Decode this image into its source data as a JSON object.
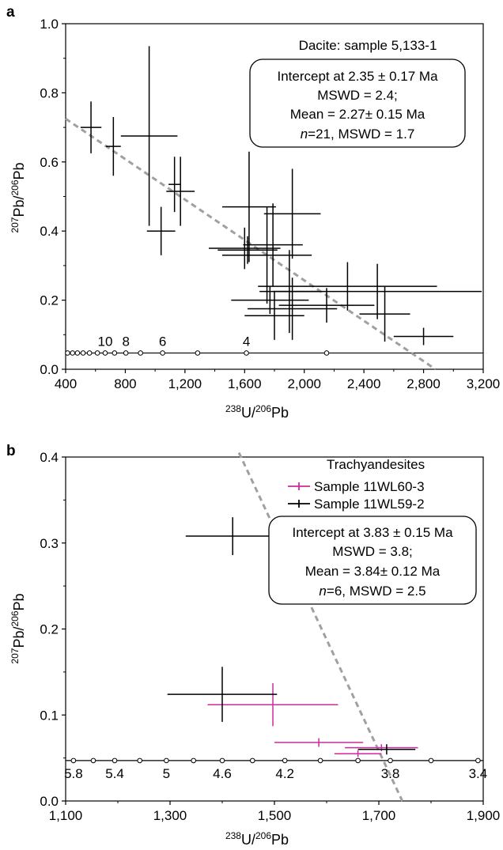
{
  "chart_data": [
    {
      "panel": "a",
      "type": "scatter",
      "xlabel_sup1": "238",
      "xlabel_base1": "U/",
      "xlabel_sup2": "206",
      "xlabel_base2": "Pb",
      "ylabel_sup1": "207",
      "ylabel_base1": "Pb/",
      "ylabel_sup2": "206",
      "ylabel_base2": "Pb",
      "xlim": [
        400,
        3200
      ],
      "ylim": [
        0.0,
        1.0
      ],
      "xticks": [
        400,
        800,
        1200,
        1600,
        2000,
        2400,
        2800,
        3200
      ],
      "xtick_labels": [
        "400",
        "800",
        "1,200",
        "1,600",
        "2,000",
        "2,400",
        "2,800",
        "3,200"
      ],
      "yticks": [
        0.0,
        0.2,
        0.4,
        0.6,
        0.8,
        1.0
      ],
      "ytick_labels": [
        "0.0",
        "0.2",
        "0.4",
        "0.6",
        "0.8",
        "1.0"
      ],
      "sample_title": "Dacite: sample 5,133-1",
      "annotation_lines": [
        "Intercept at 2.35 ± 0.17 Ma",
        "MSWD = 2.4;",
        "Mean = 2.27± 0.15 Ma",
        "n=21, MSWD = 1.7"
      ],
      "concordia": {
        "y": 0.047,
        "x_range": [
          400,
          3200
        ],
        "ticks_x": [
          413,
          446,
          479,
          517,
          560,
          613,
          665,
          728,
          804,
          902,
          1050,
          1285,
          1612,
          2150
        ],
        "labels": [
          {
            "text": "10",
            "x": 665
          },
          {
            "text": "8",
            "x": 804
          },
          {
            "text": "6",
            "x": 1050
          },
          {
            "text": "4",
            "x": 1612
          }
        ]
      },
      "regression_line": {
        "x1": 400,
        "y1": 0.725,
        "x2": 2880,
        "y2": 0.0
      },
      "series": [
        {
          "color": "#000000",
          "points": [
            {
              "x": 570,
              "y": 0.7,
              "xerr": 70,
              "yerr": 0.075
            },
            {
              "x": 720,
              "y": 0.645,
              "xerr": 50,
              "yerr": 0.085
            },
            {
              "x": 960,
              "y": 0.675,
              "xerr": 190,
              "yerr": 0.26
            },
            {
              "x": 1040,
              "y": 0.4,
              "xerr": 95,
              "yerr": 0.07
            },
            {
              "x": 1130,
              "y": 0.535,
              "xerr": 40,
              "yerr": 0.08
            },
            {
              "x": 1170,
              "y": 0.515,
              "xerr": 95,
              "yerr": 0.1
            },
            {
              "x": 1600,
              "y": 0.35,
              "xerr": 240,
              "yerr": 0.06
            },
            {
              "x": 1630,
              "y": 0.47,
              "xerr": 180,
              "yerr": 0.16
            },
            {
              "x": 1620,
              "y": 0.345,
              "xerr": 200,
              "yerr": 0.04
            },
            {
              "x": 1750,
              "y": 0.33,
              "xerr": 300,
              "yerr": 0.14
            },
            {
              "x": 1770,
              "y": 0.2,
              "xerr": 260,
              "yerr": 0.04
            },
            {
              "x": 1790,
              "y": 0.36,
              "xerr": 200,
              "yerr": 0.12
            },
            {
              "x": 1800,
              "y": 0.155,
              "xerr": 200,
              "yerr": 0.07
            },
            {
              "x": 1920,
              "y": 0.45,
              "xerr": 190,
              "yerr": 0.13
            },
            {
              "x": 1900,
              "y": 0.225,
              "xerr": 200,
              "yerr": 0.12
            },
            {
              "x": 1920,
              "y": 0.175,
              "xerr": 300,
              "yerr": 0.09
            },
            {
              "x": 2150,
              "y": 0.185,
              "xerr": 320,
              "yerr": 0.05
            },
            {
              "x": 2290,
              "y": 0.24,
              "xerr": 600,
              "yerr": 0.07
            },
            {
              "x": 2490,
              "y": 0.225,
              "xerr": 700,
              "yerr": 0.08
            },
            {
              "x": 2540,
              "y": 0.16,
              "xerr": 170,
              "yerr": 0.08
            },
            {
              "x": 2800,
              "y": 0.095,
              "xerr": 200,
              "yerr": 0.025
            }
          ]
        }
      ]
    },
    {
      "panel": "b",
      "type": "scatter",
      "xlabel_sup1": "238",
      "xlabel_base1": "U/",
      "xlabel_sup2": "206",
      "xlabel_base2": "Pb",
      "ylabel_sup1": "207",
      "ylabel_base1": "Pb/",
      "ylabel_sup2": "206",
      "ylabel_base2": "Pb",
      "xlim": [
        1100,
        1900
      ],
      "ylim": [
        0.0,
        0.4
      ],
      "xticks": [
        1100,
        1300,
        1500,
        1700,
        1900
      ],
      "xtick_labels": [
        "1,100",
        "1,300",
        "1,500",
        "1,700",
        "1,900"
      ],
      "yticks": [
        0.0,
        0.1,
        0.2,
        0.3,
        0.4
      ],
      "ytick_labels": [
        "0.0",
        "0.1",
        "0.2",
        "0.3",
        "0.4"
      ],
      "legend_title": "Trachyandesites",
      "legend_position": "top-right",
      "annotation_lines": [
        "Intercept at 3.83 ± 0.15 Ma",
        "MSWD = 3.8;",
        "Mean = 3.84± 0.12 Ma",
        "n=6, MSWD = 2.5"
      ],
      "concordia": {
        "y": 0.047,
        "x_range": [
          1100,
          1900
        ],
        "ticks_x": [
          1115,
          1153,
          1194,
          1242,
          1293,
          1345,
          1400,
          1458,
          1520,
          1588,
          1660,
          1722,
          1800,
          1890
        ],
        "labels": [
          {
            "text": "5.8",
            "x": 1115
          },
          {
            "text": "5.4",
            "x": 1194
          },
          {
            "text": "5",
            "x": 1293
          },
          {
            "text": "4.6",
            "x": 1400
          },
          {
            "text": "4.2",
            "x": 1520
          },
          {
            "text": "3.8",
            "x": 1722
          },
          {
            "text": "3.4",
            "x": 1890
          }
        ]
      },
      "regression_line": {
        "x1": 1432,
        "y1": 0.405,
        "x2": 1745,
        "y2": 0.0
      },
      "series": [
        {
          "name": "Sample 11WL60-3",
          "color": "#cc2a9e",
          "points": [
            {
              "x": 1497,
              "y": 0.112,
              "xerr": 125,
              "yerr": 0.025
            },
            {
              "x": 1585,
              "y": 0.068,
              "xerr": 85,
              "yerr": 0.005
            },
            {
              "x": 1705,
              "y": 0.062,
              "xerr": 70,
              "yerr": 0.004
            },
            {
              "x": 1660,
              "y": 0.055,
              "xerr": 45,
              "yerr": 0.004
            }
          ]
        },
        {
          "name": "Sample 11WL59-2",
          "color": "#000000",
          "points": [
            {
              "x": 1420,
              "y": 0.308,
              "xerr": 90,
              "yerr": 0.022
            },
            {
              "x": 1400,
              "y": 0.124,
              "xerr": 105,
              "yerr": 0.032
            },
            {
              "x": 1715,
              "y": 0.06,
              "xerr": 55,
              "yerr": 0.006
            }
          ]
        }
      ]
    }
  ]
}
